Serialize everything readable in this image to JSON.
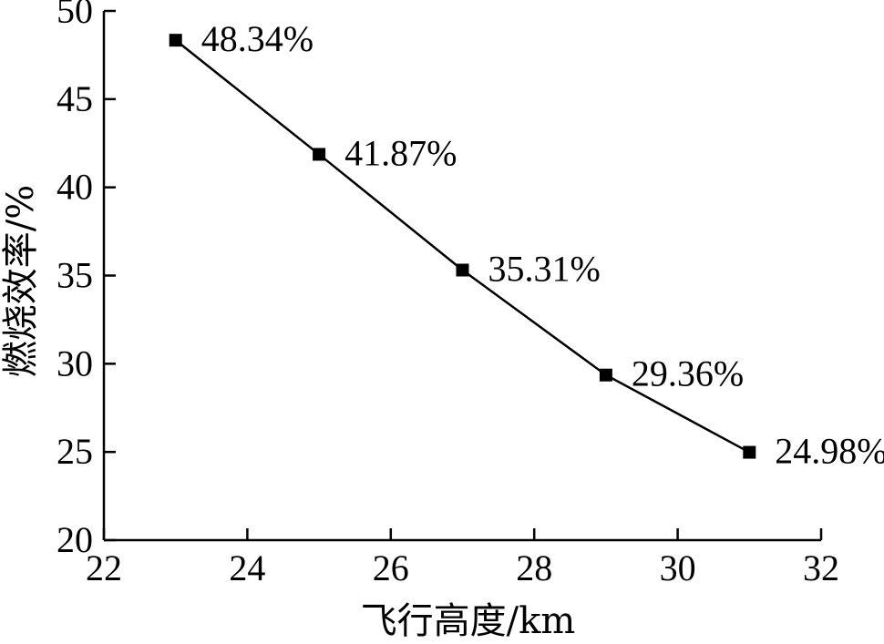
{
  "chart_data": {
    "type": "line",
    "xlabel": "飞行高度/km",
    "ylabel": "燃烧效率/%",
    "xlim": [
      22,
      32
    ],
    "ylim": [
      20,
      50
    ],
    "xticks": [
      "22",
      "24",
      "26",
      "28",
      "30",
      "32"
    ],
    "yticks": [
      "20",
      "25",
      "30",
      "35",
      "40",
      "45",
      "50"
    ],
    "grid": false,
    "marker": "square",
    "series": [
      {
        "x": [
          23,
          25,
          27,
          29,
          31
        ],
        "y": [
          48.34,
          41.87,
          35.31,
          29.36,
          24.98
        ],
        "labels": [
          "48.34%",
          "41.87%",
          "35.31%",
          "29.36%",
          "24.98%"
        ]
      }
    ]
  }
}
